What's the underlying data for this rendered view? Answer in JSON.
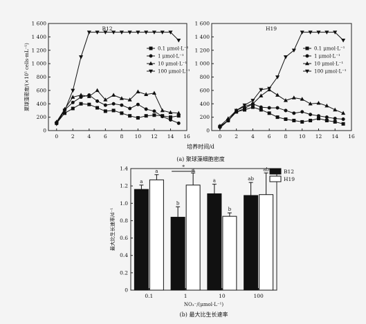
{
  "chart_data": [
    {
      "type": "line",
      "title": "B12",
      "xlabel": "",
      "ylabel": "聚球藻密度/(×10⁵ cells·mL⁻¹)",
      "xlim": [
        -1,
        16
      ],
      "ylim": [
        0,
        1600
      ],
      "xticks": [
        "0",
        "2",
        "4",
        "6",
        "8",
        "10",
        "12",
        "14",
        "16"
      ],
      "yticks": [
        "0",
        "200",
        "400",
        "600",
        "800",
        "1 000",
        "1 200",
        "1 400",
        "1 600"
      ],
      "legend": "right",
      "series": [
        {
          "name": "0.1 μmol·L⁻¹",
          "marker": "square",
          "x": [
            0,
            1,
            2,
            3,
            4,
            5,
            6,
            7,
            8,
            9,
            10,
            11,
            12,
            13,
            14,
            15
          ],
          "y": [
            110,
            260,
            330,
            400,
            390,
            340,
            290,
            300,
            260,
            220,
            190,
            220,
            230,
            220,
            200,
            220
          ]
        },
        {
          "name": "1 μmol·L⁻¹",
          "marker": "circle",
          "x": [
            0,
            1,
            2,
            3,
            4,
            5,
            6,
            7,
            8,
            9,
            10,
            11,
            12,
            13,
            14,
            15
          ],
          "y": [
            120,
            310,
            420,
            500,
            530,
            440,
            380,
            400,
            380,
            330,
            390,
            320,
            290,
            210,
            160,
            110
          ]
        },
        {
          "name": "10 μmol·L⁻¹",
          "marker": "triangle-up",
          "x": [
            0,
            1,
            2,
            3,
            4,
            5,
            6,
            7,
            8,
            9,
            10,
            11,
            12,
            13,
            14,
            15
          ],
          "y": [
            130,
            320,
            500,
            530,
            510,
            600,
            460,
            530,
            480,
            460,
            580,
            540,
            560,
            300,
            270,
            260
          ]
        },
        {
          "name": "100 μmol·L⁻¹",
          "marker": "triangle-down",
          "x": [
            0,
            1,
            2,
            3,
            4,
            5,
            6,
            7,
            8,
            9,
            10,
            11,
            12,
            13,
            14,
            15
          ],
          "y": [
            100,
            300,
            600,
            1100,
            1470,
            1470,
            1470,
            1470,
            1470,
            1470,
            1470,
            1470,
            1470,
            1470,
            1470,
            1350
          ]
        }
      ]
    },
    {
      "type": "line",
      "title": "H19",
      "xlabel": "培养时间/d",
      "ylabel": "",
      "xlim": [
        -1,
        16
      ],
      "ylim": [
        0,
        1600
      ],
      "xticks": [
        "0",
        "2",
        "4",
        "6",
        "8",
        "10",
        "12",
        "14",
        "16"
      ],
      "yticks": [
        "0",
        "200",
        "400",
        "600",
        "800",
        "1 000",
        "1 200",
        "1 400",
        "1 600"
      ],
      "legend": "right",
      "caption": "(a) 聚球藻细胞密度",
      "series": [
        {
          "name": "0.1 μmol·L⁻¹",
          "marker": "square",
          "x": [
            0,
            1,
            2,
            3,
            4,
            5,
            6,
            7,
            8,
            9,
            10,
            11,
            12,
            13,
            14,
            15
          ],
          "y": [
            60,
            150,
            280,
            310,
            350,
            310,
            260,
            200,
            170,
            150,
            130,
            150,
            180,
            150,
            130,
            100
          ]
        },
        {
          "name": "1 μmol·L⁻¹",
          "marker": "circle",
          "x": [
            0,
            1,
            2,
            3,
            4,
            5,
            6,
            7,
            8,
            9,
            10,
            11,
            12,
            13,
            14,
            15
          ],
          "y": [
            60,
            150,
            280,
            330,
            400,
            350,
            340,
            340,
            300,
            260,
            280,
            240,
            220,
            200,
            180,
            170
          ]
        },
        {
          "name": "10 μmol·L⁻¹",
          "marker": "triangle-up",
          "x": [
            0,
            1,
            2,
            3,
            4,
            5,
            6,
            7,
            8,
            9,
            10,
            11,
            12,
            13,
            14,
            15
          ],
          "y": [
            70,
            180,
            300,
            360,
            400,
            520,
            610,
            530,
            450,
            490,
            470,
            400,
            410,
            370,
            310,
            260
          ]
        },
        {
          "name": "100 μmol·L⁻¹",
          "marker": "triangle-down",
          "x": [
            0,
            1,
            2,
            3,
            4,
            5,
            6,
            7,
            8,
            9,
            10,
            11,
            12,
            13,
            14,
            15
          ],
          "y": [
            40,
            150,
            300,
            380,
            450,
            610,
            630,
            800,
            1100,
            1200,
            1470,
            1470,
            1470,
            1470,
            1470,
            1350
          ]
        }
      ]
    },
    {
      "type": "bar",
      "xlabel": "NO₃⁻/(μmol·L⁻¹)",
      "ylabel": "最大比生长速率/d⁻¹",
      "ylim": [
        0,
        1.4
      ],
      "yticks": [
        "0",
        "0.2",
        "0.4",
        "0.6",
        "0.8",
        "1.0",
        "1.2",
        "1.4"
      ],
      "categories": [
        "0.1",
        "1",
        "10",
        "100"
      ],
      "legend": "top-right",
      "significance_marker": "*",
      "caption": "(b) 最大比生长速率",
      "series": [
        {
          "name": "B12",
          "color": "#111111",
          "values": [
            1.16,
            0.84,
            1.11,
            1.09
          ],
          "errors": [
            0.05,
            0.12,
            0.11,
            0.15
          ],
          "letters": [
            "a",
            "b",
            "a",
            "ab"
          ]
        },
        {
          "name": "H19",
          "color": "#ffffff",
          "values": [
            1.27,
            1.21,
            0.85,
            1.1
          ],
          "errors": [
            0.06,
            0.14,
            0.04,
            0.25
          ],
          "letters": [
            "a",
            "a",
            "b",
            "ab"
          ]
        }
      ]
    }
  ]
}
